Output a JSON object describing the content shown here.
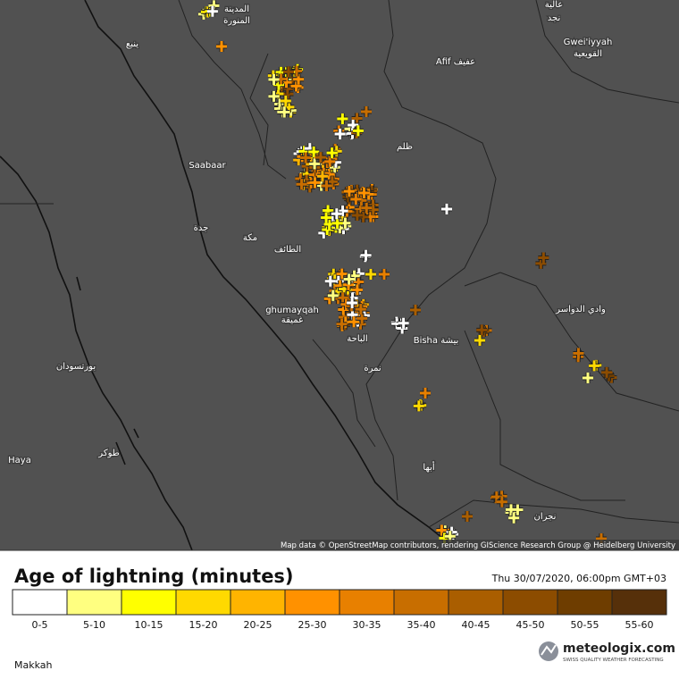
{
  "map": {
    "labels": [
      "المدينة",
      "المنورة",
      "ينبع",
      "Afif عفيف",
      "عالية",
      "نجد",
      "Gwei'iyyah",
      "القويعية",
      "ظلم",
      "Saabaar",
      "جدة",
      "مكة",
      "الطائف",
      "وادي الدواسر",
      "ghumayqah",
      "غميقة",
      "الباحة",
      "Bisha بيشة",
      "بورتسودان",
      "نمرة",
      "Haya",
      "طوكر",
      "أبها",
      "نجران"
    ],
    "attribution": "Map data © OpenStreetMap contributors, rendering GIScience Research Group @ Heidelberg University"
  },
  "legend": {
    "title": "Age of lightning (minutes)",
    "timestamp": "Thu 30/07/2020, 06:00pm GMT+03",
    "classes": [
      {
        "label": "0-5",
        "color": "#ffffff"
      },
      {
        "label": "5-10",
        "color": "#ffff80"
      },
      {
        "label": "10-15",
        "color": "#ffff00"
      },
      {
        "label": "15-20",
        "color": "#ffd900"
      },
      {
        "label": "20-25",
        "color": "#ffb400"
      },
      {
        "label": "25-30",
        "color": "#ff9100"
      },
      {
        "label": "30-35",
        "color": "#e88000"
      },
      {
        "label": "35-40",
        "color": "#c86e00"
      },
      {
        "label": "40-45",
        "color": "#aa5e00"
      },
      {
        "label": "45-50",
        "color": "#8c4c00"
      },
      {
        "label": "50-55",
        "color": "#6e3d00"
      },
      {
        "label": "55-60",
        "color": "#56300a"
      }
    ]
  },
  "footer": {
    "region": "Makkah",
    "brand": "meteologix.com",
    "tagline": "SWISS QUALITY WEATHER FORECASTING"
  }
}
